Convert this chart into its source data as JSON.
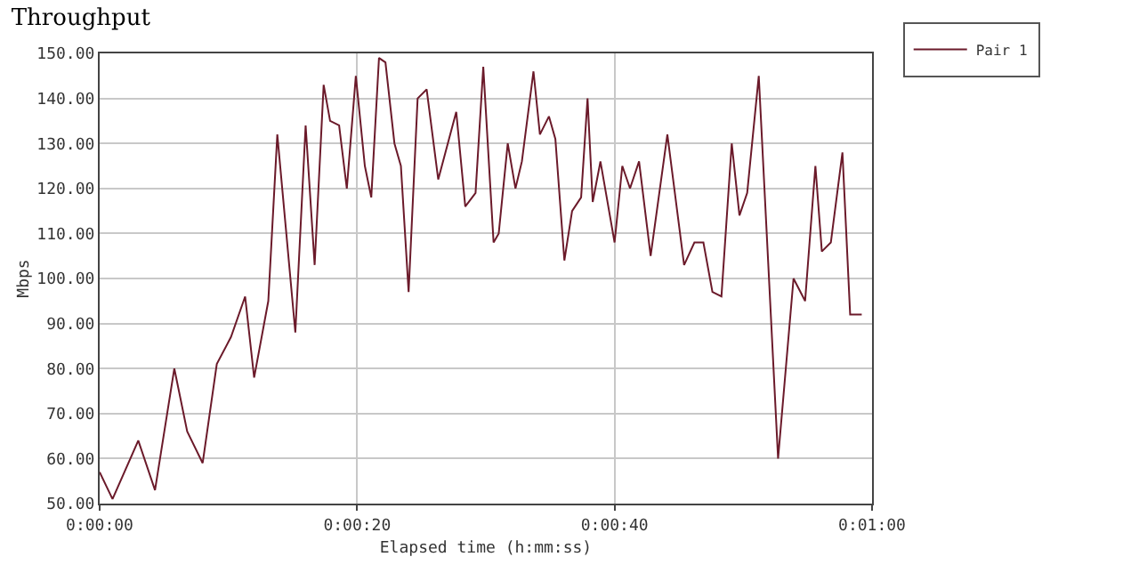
{
  "chart_data": {
    "type": "line",
    "title": "Throughput",
    "xlabel": "Elapsed time (h:mm:ss)",
    "ylabel": "Mbps",
    "x": [
      0,
      1.0,
      3.0,
      4.3,
      5.8,
      6.8,
      8.0,
      9.1,
      10.2,
      11.3,
      12.0,
      13.1,
      13.8,
      15.2,
      16.0,
      16.7,
      17.4,
      17.9,
      18.6,
      19.2,
      19.9,
      20.6,
      21.1,
      21.7,
      22.2,
      22.9,
      23.4,
      24.0,
      24.7,
      25.4,
      26.3,
      27.7,
      28.4,
      29.2,
      29.8,
      30.6,
      31.0,
      31.7,
      32.3,
      32.8,
      33.7,
      34.2,
      34.9,
      35.4,
      36.1,
      36.7,
      37.4,
      37.9,
      38.3,
      38.9,
      40.0,
      40.6,
      41.2,
      41.9,
      42.8,
      44.1,
      45.4,
      46.2,
      46.9,
      47.6,
      48.3,
      49.1,
      49.7,
      50.3,
      51.2,
      52.7,
      53.9,
      54.8,
      55.6,
      56.1,
      56.8,
      57.7,
      58.3,
      59.2
    ],
    "series": [
      {
        "name": "Pair 1",
        "color": "#6b1a2a",
        "values": [
          57,
          51,
          64,
          53,
          80,
          66,
          59,
          81,
          87,
          96,
          78,
          95,
          132,
          88,
          134,
          103,
          143,
          135,
          134,
          120,
          145,
          125,
          118,
          149,
          148,
          130,
          125,
          97,
          140,
          142,
          122,
          137,
          116,
          119,
          147,
          108,
          110,
          130,
          120,
          126,
          146,
          132,
          136,
          131,
          104,
          115,
          118,
          140,
          117,
          126,
          108,
          125,
          120,
          126,
          105,
          132,
          103,
          108,
          108,
          97,
          96,
          130,
          114,
          119,
          145,
          60,
          100,
          95,
          125,
          106,
          108,
          128,
          92,
          92
        ]
      }
    ],
    "xlim": [
      0,
      60
    ],
    "xticks": [
      {
        "value": 0,
        "label": "0:00:00"
      },
      {
        "value": 20,
        "label": "0:00:20"
      },
      {
        "value": 40,
        "label": "0:00:40"
      },
      {
        "value": 60,
        "label": "0:01:00"
      }
    ],
    "ylim": [
      50,
      150
    ],
    "yticks": [
      {
        "value": 50,
        "label": "50.00"
      },
      {
        "value": 60,
        "label": "60.00"
      },
      {
        "value": 70,
        "label": "70.00"
      },
      {
        "value": 80,
        "label": "80.00"
      },
      {
        "value": 90,
        "label": "90.00"
      },
      {
        "value": 100,
        "label": "100.00"
      },
      {
        "value": 110,
        "label": "110.00"
      },
      {
        "value": 120,
        "label": "120.00"
      },
      {
        "value": 130,
        "label": "130.00"
      },
      {
        "value": 140,
        "label": "140.00"
      },
      {
        "value": 150,
        "label": "150.00"
      }
    ],
    "grid": true,
    "legend": "right",
    "marker": "none",
    "line_style": "solid"
  }
}
